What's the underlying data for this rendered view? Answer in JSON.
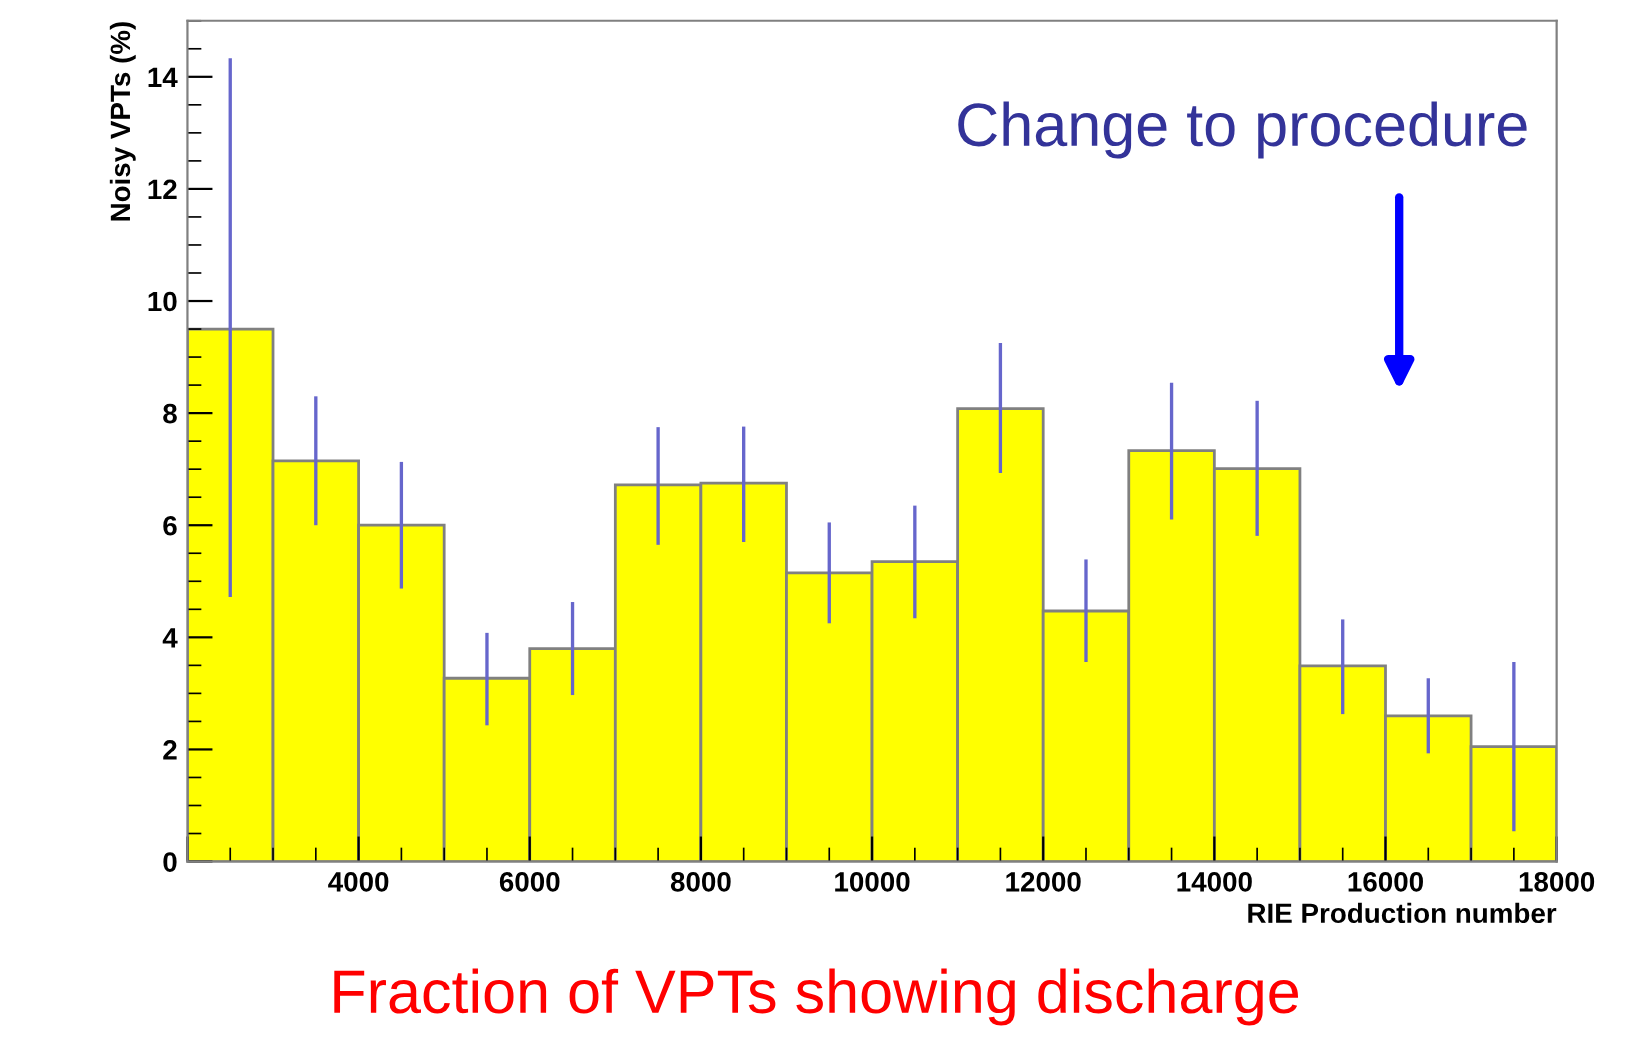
{
  "chart_data": {
    "type": "histogram",
    "xlabel": "RIE Production number",
    "ylabel": "Noisy VPTs (%)",
    "bins": [
      2000,
      3000,
      4000,
      5000,
      6000,
      7000,
      8000,
      9000,
      10000,
      11000,
      12000,
      13000,
      14000,
      15000,
      16000,
      17000,
      18000
    ],
    "values": [
      9.5,
      7.15,
      6.0,
      3.27,
      3.8,
      6.72,
      6.75,
      5.15,
      5.35,
      8.08,
      4.47,
      7.33,
      7.01,
      3.49,
      2.6,
      2.05
    ],
    "errors": [
      [
        4.75,
        14.3
      ],
      [
        6.03,
        8.27
      ],
      [
        4.9,
        7.1
      ],
      [
        2.46,
        4.05
      ],
      [
        3.0,
        4.6
      ],
      [
        5.68,
        7.72
      ],
      [
        5.73,
        7.73
      ],
      [
        4.28,
        6.02
      ],
      [
        4.37,
        6.32
      ],
      [
        6.96,
        9.22
      ],
      [
        3.59,
        5.36
      ],
      [
        6.13,
        8.51
      ],
      [
        5.84,
        8.19
      ],
      [
        2.66,
        4.29
      ],
      [
        1.96,
        3.24
      ],
      [
        0.57,
        3.53
      ]
    ],
    "color": "#ffff00",
    "xlim": [
      2000,
      18000
    ],
    "xticks": [
      {
        "value": 2000,
        "label": null
      },
      4000,
      6000,
      8000,
      10000,
      12000,
      14000,
      16000,
      18000
    ],
    "ylim": [
      0,
      15
    ],
    "yticks": [
      0,
      2,
      4,
      6,
      8,
      10,
      12,
      14
    ],
    "grid": false,
    "legend": false,
    "annotations": [
      "Change to procedure",
      "Fraction of VPTs showing discharge"
    ]
  }
}
